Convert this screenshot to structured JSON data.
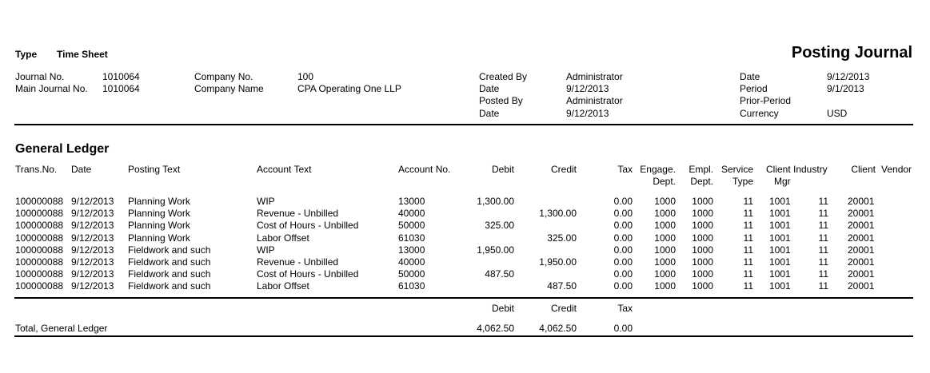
{
  "report": {
    "title": "Posting Journal",
    "type_label": "Type",
    "type_value": "Time Sheet"
  },
  "header": {
    "journal_no_label": "Journal No.",
    "journal_no": "1010064",
    "main_journal_no_label": "Main Journal No.",
    "main_journal_no": "1010064",
    "company_no_label": "Company No.",
    "company_no": "100",
    "company_name_label": "Company Name",
    "company_name": "CPA Operating One LLP",
    "created_by_label": "Created By",
    "created_by": "Administrator",
    "created_date_label": "Date",
    "created_date": "9/12/2013",
    "posted_by_label": "Posted By",
    "posted_by": "Administrator",
    "posted_date_label": "Date",
    "posted_date": "9/12/2013",
    "date_label": "Date",
    "date": "9/12/2013",
    "period_label": "Period",
    "period": "9/1/2013",
    "prior_period_label": "Prior-Period",
    "currency_label": "Currency",
    "currency": "USD"
  },
  "ledger": {
    "title": "General Ledger",
    "columns": {
      "trans_no": "Trans.No.",
      "date": "Date",
      "posting_text": "Posting Text",
      "account_text": "Account Text",
      "account_no": "Account No.",
      "debit": "Debit",
      "credit": "Credit",
      "tax": "Tax",
      "engage_dept_1": "Engage.",
      "engage_dept_2": "Dept.",
      "empl_dept_1": "Empl.",
      "empl_dept_2": "Dept.",
      "service_type_1": "Service",
      "service_type_2": "Type",
      "client_mgr_1": "Client",
      "client_mgr_2": "Mgr",
      "industry": "Industry",
      "client": "Client",
      "vendor": "Vendor"
    },
    "rows": [
      {
        "trans_no": "100000088",
        "date": "9/12/2013",
        "posting_text": "Planning Work",
        "account_text": "WIP",
        "account_no": "13000",
        "debit": "1,300.00",
        "credit": "",
        "tax": "0.00",
        "engage_dept": "1000",
        "empl_dept": "1000",
        "service_type": "11",
        "client_mgr": "1001",
        "industry": "11",
        "client": "20001",
        "vendor": ""
      },
      {
        "trans_no": "100000088",
        "date": "9/12/2013",
        "posting_text": "Planning Work",
        "account_text": "Revenue - Unbilled",
        "account_no": "40000",
        "debit": "",
        "credit": "1,300.00",
        "tax": "0.00",
        "engage_dept": "1000",
        "empl_dept": "1000",
        "service_type": "11",
        "client_mgr": "1001",
        "industry": "11",
        "client": "20001",
        "vendor": ""
      },
      {
        "trans_no": "100000088",
        "date": "9/12/2013",
        "posting_text": "Planning Work",
        "account_text": "Cost of Hours - Unbilled",
        "account_no": "50000",
        "debit": "325.00",
        "credit": "",
        "tax": "0.00",
        "engage_dept": "1000",
        "empl_dept": "1000",
        "service_type": "11",
        "client_mgr": "1001",
        "industry": "11",
        "client": "20001",
        "vendor": ""
      },
      {
        "trans_no": "100000088",
        "date": "9/12/2013",
        "posting_text": "Planning Work",
        "account_text": "Labor Offset",
        "account_no": "61030",
        "debit": "",
        "credit": "325.00",
        "tax": "0.00",
        "engage_dept": "1000",
        "empl_dept": "1000",
        "service_type": "11",
        "client_mgr": "1001",
        "industry": "11",
        "client": "20001",
        "vendor": ""
      },
      {
        "trans_no": "100000088",
        "date": "9/12/2013",
        "posting_text": "Fieldwork and such",
        "account_text": "WIP",
        "account_no": "13000",
        "debit": "1,950.00",
        "credit": "",
        "tax": "0.00",
        "engage_dept": "1000",
        "empl_dept": "1000",
        "service_type": "11",
        "client_mgr": "1001",
        "industry": "11",
        "client": "20001",
        "vendor": ""
      },
      {
        "trans_no": "100000088",
        "date": "9/12/2013",
        "posting_text": "Fieldwork and such",
        "account_text": "Revenue - Unbilled",
        "account_no": "40000",
        "debit": "",
        "credit": "1,950.00",
        "tax": "0.00",
        "engage_dept": "1000",
        "empl_dept": "1000",
        "service_type": "11",
        "client_mgr": "1001",
        "industry": "11",
        "client": "20001",
        "vendor": ""
      },
      {
        "trans_no": "100000088",
        "date": "9/12/2013",
        "posting_text": "Fieldwork and such",
        "account_text": "Cost of Hours - Unbilled",
        "account_no": "50000",
        "debit": "487.50",
        "credit": "",
        "tax": "0.00",
        "engage_dept": "1000",
        "empl_dept": "1000",
        "service_type": "11",
        "client_mgr": "1001",
        "industry": "11",
        "client": "20001",
        "vendor": ""
      },
      {
        "trans_no": "100000088",
        "date": "9/12/2013",
        "posting_text": "Fieldwork and such",
        "account_text": "Labor Offset",
        "account_no": "61030",
        "debit": "",
        "credit": "487.50",
        "tax": "0.00",
        "engage_dept": "1000",
        "empl_dept": "1000",
        "service_type": "11",
        "client_mgr": "1001",
        "industry": "11",
        "client": "20001",
        "vendor": ""
      }
    ],
    "totals": {
      "debit_label": "Debit",
      "credit_label": "Credit",
      "tax_label": "Tax",
      "label": "Total, General Ledger",
      "debit": "4,062.50",
      "credit": "4,062.50",
      "tax": "0.00"
    }
  }
}
